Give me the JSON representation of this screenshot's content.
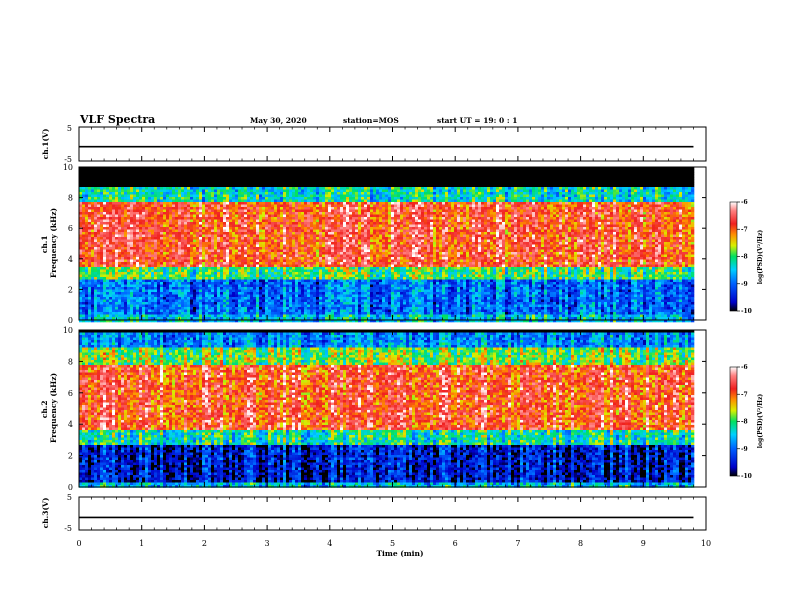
{
  "header": {
    "title": "VLF Spectra",
    "date": "May 30, 2020",
    "station": "station=MOS",
    "start": "start  UT =   19: 0  : 1"
  },
  "chart_data": [
    {
      "type": "line",
      "panel": "ch1-voltage",
      "ylabel": "ch.1(V)",
      "ylim": [
        -5,
        5
      ],
      "ytick_labels": [
        "-5",
        "5"
      ],
      "series": [
        {
          "x": [
            0,
            9.8
          ],
          "values": [
            -0.8,
            -0.8
          ]
        }
      ]
    },
    {
      "type": "heatmap",
      "panel": "ch1-spectrogram",
      "ylabel": "ch.1\nFrequency (kHz)",
      "ylim": [
        0,
        10
      ],
      "xlim": [
        0,
        10
      ],
      "ytick_labels": [
        "0",
        "2",
        "4",
        "6",
        "8",
        "10"
      ],
      "color_scale": {
        "label": "log(PSD)(V²/Hz)",
        "range": [
          -10,
          -6
        ],
        "tick_labels": [
          "-6",
          "-7",
          "-8",
          "-9",
          "-10"
        ]
      },
      "bands": [
        {
          "from_khz": 0,
          "to_khz": 0.5,
          "log_psd": -8.5
        },
        {
          "from_khz": 0.5,
          "to_khz": 2.8,
          "log_psd": -9.0
        },
        {
          "from_khz": 2.8,
          "to_khz": 3.6,
          "log_psd": -8.0
        },
        {
          "from_khz": 3.6,
          "to_khz": 7.8,
          "log_psd": -6.8
        },
        {
          "from_khz": 7.8,
          "to_khz": 8.8,
          "log_psd": -8.3
        },
        {
          "from_khz": 8.8,
          "to_khz": 10,
          "log_psd": -10
        }
      ]
    },
    {
      "type": "heatmap",
      "panel": "ch2-spectrogram",
      "ylabel": "ch.2\nFrequency (kHz)",
      "ylim": [
        0,
        10
      ],
      "xlim": [
        0,
        10
      ],
      "ytick_labels": [
        "0",
        "2",
        "4",
        "6",
        "8",
        "10"
      ],
      "color_scale": {
        "label": "log(PSD)(V²/Hz)",
        "range": [
          -10,
          -6
        ],
        "tick_labels": [
          "-6",
          "-7",
          "-8",
          "-9",
          "-10"
        ]
      },
      "bands": [
        {
          "from_khz": 0,
          "to_khz": 0.3,
          "log_psd": -8.5
        },
        {
          "from_khz": 0.3,
          "to_khz": 2.7,
          "log_psd": -9.5
        },
        {
          "from_khz": 2.7,
          "to_khz": 3.7,
          "log_psd": -8.2
        },
        {
          "from_khz": 3.7,
          "to_khz": 7.8,
          "log_psd": -6.8
        },
        {
          "from_khz": 7.8,
          "to_khz": 9.0,
          "log_psd": -7.8
        },
        {
          "from_khz": 9.0,
          "to_khz": 10,
          "log_psd": -8.8
        }
      ]
    },
    {
      "type": "line",
      "panel": "ch3-voltage",
      "ylabel": "ch.3(V)",
      "ylim": [
        -5,
        5
      ],
      "ytick_labels": [
        "-5",
        "5"
      ],
      "series": [
        {
          "x": [
            0,
            9.8
          ],
          "values": [
            -1.2,
            -1.2
          ]
        }
      ]
    }
  ],
  "xaxis": {
    "label": "Time  (min)",
    "tick_labels": [
      "0",
      "1",
      "2",
      "3",
      "4",
      "5",
      "6",
      "7",
      "8",
      "9",
      "10"
    ],
    "xlim": [
      0,
      10
    ]
  }
}
